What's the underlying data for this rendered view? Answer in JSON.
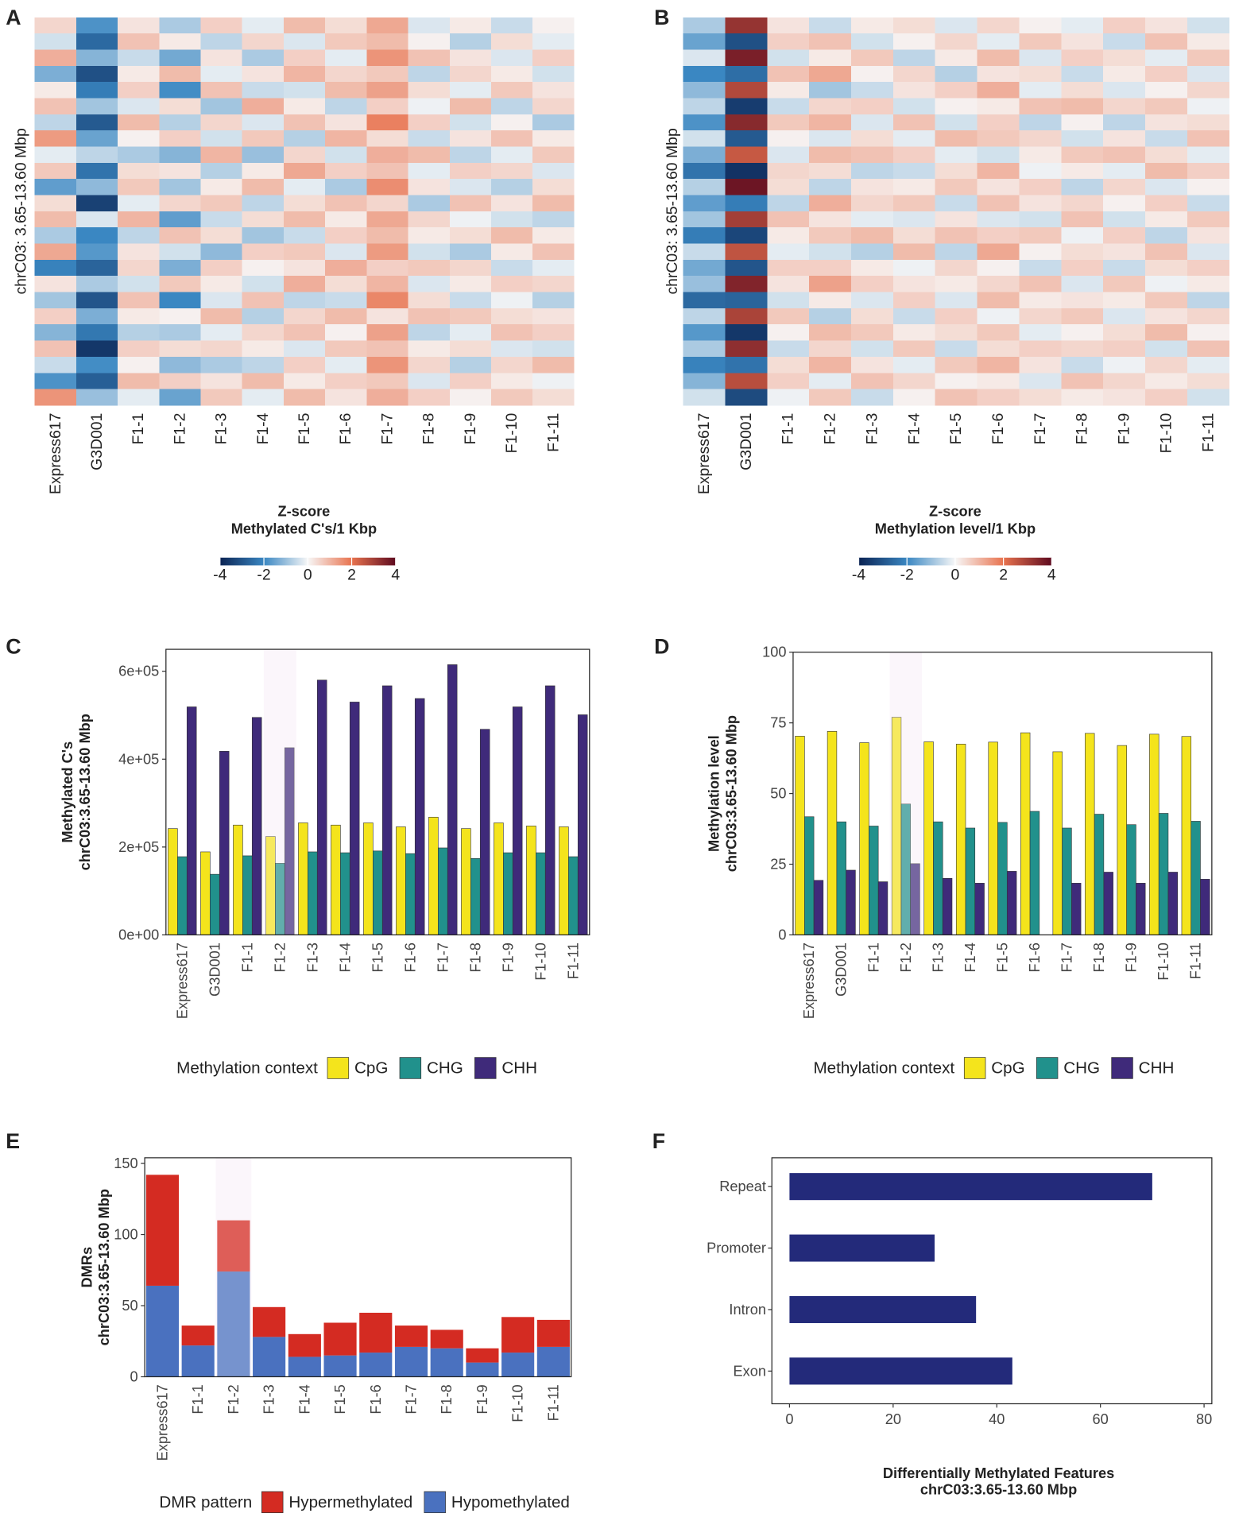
{
  "chart_data": [
    {
      "type": "heatmap",
      "panel": "A",
      "columns": [
        "Express617",
        "G3D001",
        "F1-1",
        "F1-2",
        "F1-3",
        "F1-4",
        "F1-5",
        "F1-6",
        "F1-7",
        "F1-8",
        "F1-9",
        "F1-10",
        "F1-11"
      ],
      "ylabel": "chrC03: 3.65-13.60 Mbp",
      "legend_title": [
        "Z-score",
        "Methylated C's/1 Kbp"
      ],
      "zlim": [
        -4,
        4
      ],
      "zticks": [
        -4,
        -2,
        0,
        2,
        4
      ],
      "colors": [
        "#0b2353",
        "#3a87c2",
        "#f7f7f7",
        "#e8734f",
        "#5e0a1f"
      ],
      "values": [
        [
          0.5,
          -1.8,
          0.3,
          -0.8,
          0.6,
          -0.2,
          0.9,
          0.4,
          1.2,
          -0.3,
          0.2,
          -0.5,
          0.1
        ],
        [
          -0.4,
          -2.6,
          0.8,
          0.2,
          -0.6,
          0.5,
          -0.3,
          0.7,
          0.9,
          0.1,
          -0.7,
          0.4,
          -0.2
        ],
        [
          1.1,
          -1.2,
          -0.5,
          -1.4,
          0.3,
          -0.8,
          0.6,
          -0.2,
          1.5,
          0.8,
          0.3,
          -0.3,
          0.6
        ],
        [
          -1.3,
          -3.1,
          0.2,
          0.9,
          -0.2,
          0.3,
          1.0,
          0.5,
          0.7,
          -0.6,
          0.5,
          0.2,
          -0.4
        ],
        [
          0.2,
          -2.2,
          0.6,
          -1.9,
          0.8,
          -0.5,
          -0.4,
          0.9,
          1.3,
          0.4,
          -0.2,
          0.7,
          0.3
        ],
        [
          0.8,
          -0.9,
          -0.3,
          0.4,
          -0.9,
          1.1,
          0.2,
          -0.6,
          0.6,
          -0.1,
          0.9,
          -0.6,
          0.5
        ],
        [
          -0.6,
          -2.9,
          0.9,
          -0.7,
          0.5,
          -0.3,
          0.8,
          0.3,
          1.8,
          0.6,
          -0.4,
          0.1,
          -0.8
        ],
        [
          1.4,
          -1.5,
          0.1,
          0.6,
          -0.4,
          0.7,
          -0.7,
          1.0,
          0.4,
          -0.5,
          0.3,
          0.8,
          0.2
        ],
        [
          -0.2,
          -0.6,
          -0.8,
          -1.2,
          1.0,
          -1.0,
          0.5,
          -0.4,
          1.1,
          0.9,
          -0.6,
          -0.2,
          0.7
        ],
        [
          0.7,
          -2.4,
          0.4,
          0.3,
          -0.7,
          0.2,
          1.2,
          0.6,
          0.8,
          -0.2,
          0.6,
          0.5,
          -0.3
        ],
        [
          -1.6,
          -1.1,
          0.7,
          -0.9,
          0.2,
          0.9,
          -0.2,
          -0.8,
          1.6,
          0.3,
          -0.3,
          -0.7,
          0.4
        ],
        [
          0.4,
          -3.4,
          -0.2,
          0.5,
          0.7,
          -0.6,
          0.4,
          0.8,
          0.5,
          -0.8,
          0.8,
          0.3,
          0.9
        ],
        [
          0.9,
          -0.3,
          1.0,
          -1.6,
          -0.5,
          0.4,
          0.9,
          0.2,
          1.2,
          0.5,
          -0.1,
          -0.4,
          -0.6
        ],
        [
          -0.8,
          -2.0,
          -0.6,
          0.8,
          0.4,
          -0.9,
          -0.5,
          0.6,
          0.9,
          0.2,
          0.4,
          0.9,
          0.2
        ],
        [
          1.2,
          -1.7,
          0.3,
          -0.4,
          -1.1,
          0.6,
          0.7,
          -0.3,
          1.4,
          -0.4,
          -0.8,
          0.2,
          0.8
        ],
        [
          -2.1,
          -2.7,
          0.5,
          -1.3,
          0.6,
          0.1,
          0.3,
          1.1,
          0.6,
          0.7,
          0.5,
          -0.5,
          -0.2
        ],
        [
          0.3,
          -0.8,
          -0.4,
          0.7,
          0.2,
          -0.4,
          1.1,
          0.4,
          1.0,
          -0.3,
          0.2,
          0.6,
          0.5
        ],
        [
          -0.9,
          -3.0,
          0.8,
          -2.0,
          -0.3,
          0.8,
          -0.6,
          -0.5,
          1.7,
          0.4,
          -0.5,
          -0.1,
          -0.7
        ],
        [
          0.6,
          -1.3,
          0.2,
          0.1,
          0.9,
          -0.7,
          0.5,
          0.9,
          0.3,
          0.8,
          0.7,
          0.4,
          0.3
        ],
        [
          -1.2,
          -2.3,
          -0.7,
          -0.8,
          -0.2,
          0.5,
          0.8,
          0.1,
          1.3,
          -0.6,
          -0.2,
          0.8,
          0.6
        ],
        [
          0.8,
          -3.6,
          0.6,
          0.4,
          0.5,
          0.2,
          -0.3,
          0.7,
          0.8,
          0.2,
          0.4,
          -0.3,
          -0.4
        ],
        [
          -0.5,
          -1.9,
          0.1,
          -1.1,
          -0.8,
          -0.6,
          0.6,
          -0.2,
          1.5,
          0.5,
          -0.7,
          0.5,
          0.9
        ],
        [
          -1.8,
          -2.8,
          0.9,
          0.6,
          0.3,
          0.9,
          0.2,
          0.6,
          0.7,
          -0.3,
          0.6,
          0.2,
          -0.1
        ],
        [
          1.5,
          -1.0,
          -0.2,
          -1.5,
          0.7,
          -0.2,
          0.9,
          0.3,
          1.1,
          0.6,
          0.1,
          0.7,
          0.4
        ]
      ]
    },
    {
      "type": "heatmap",
      "panel": "B",
      "columns": [
        "Express617",
        "G3D001",
        "F1-1",
        "F1-2",
        "F1-3",
        "F1-4",
        "F1-5",
        "F1-6",
        "F1-7",
        "F1-8",
        "F1-9",
        "F1-10",
        "F1-11"
      ],
      "ylabel": "chrC03: 3.65-13.60 Mbp",
      "legend_title": [
        "Z-score",
        "Methylation level/1 Kbp"
      ],
      "zlim": [
        -4,
        4
      ],
      "zticks": [
        -4,
        -2,
        0,
        2,
        4
      ],
      "colors": [
        "#0b2353",
        "#3a87c2",
        "#f7f7f7",
        "#e8734f",
        "#5e0a1f"
      ],
      "values": [
        [
          -0.8,
          3.2,
          0.3,
          -0.5,
          0.2,
          0.4,
          -0.3,
          0.5,
          0.1,
          -0.2,
          0.6,
          0.3,
          -0.4
        ],
        [
          -1.5,
          -3.1,
          0.6,
          0.8,
          -0.4,
          0.1,
          0.5,
          -0.2,
          0.7,
          0.3,
          -0.5,
          0.8,
          0.2
        ],
        [
          -0.3,
          3.6,
          -0.4,
          0.2,
          0.7,
          -0.6,
          0.2,
          0.9,
          -0.3,
          0.6,
          0.4,
          -0.2,
          0.7
        ],
        [
          -2.0,
          -2.5,
          0.8,
          1.2,
          0.1,
          0.5,
          -0.7,
          0.3,
          0.4,
          -0.5,
          0.2,
          0.6,
          -0.3
        ],
        [
          -1.1,
          2.8,
          0.2,
          -0.9,
          -0.5,
          0.3,
          0.6,
          1.1,
          -0.2,
          0.4,
          -0.3,
          0.1,
          0.5
        ],
        [
          -0.6,
          -3.5,
          -0.5,
          0.5,
          0.6,
          -0.4,
          0.1,
          0.2,
          0.8,
          0.9,
          0.5,
          0.7,
          -0.1
        ],
        [
          -1.8,
          3.4,
          0.7,
          1.0,
          -0.3,
          0.8,
          -0.4,
          0.6,
          -0.6,
          0.1,
          -0.6,
          0.3,
          0.4
        ],
        [
          -0.4,
          -2.9,
          0.1,
          -0.3,
          0.4,
          -0.2,
          0.9,
          0.7,
          0.5,
          -0.4,
          0.3,
          -0.5,
          0.8
        ],
        [
          -1.3,
          2.5,
          -0.3,
          0.9,
          0.8,
          0.6,
          -0.2,
          -0.4,
          0.2,
          0.7,
          0.8,
          0.4,
          -0.2
        ],
        [
          -2.4,
          -3.7,
          0.5,
          0.4,
          -0.6,
          -0.5,
          0.4,
          1.0,
          -0.1,
          0.2,
          -0.2,
          0.9,
          0.6
        ],
        [
          -0.7,
          3.8,
          0.4,
          -0.6,
          0.3,
          0.2,
          0.7,
          0.3,
          0.6,
          -0.6,
          0.5,
          -0.3,
          0.1
        ],
        [
          -1.6,
          -2.2,
          -0.6,
          1.1,
          0.5,
          0.7,
          -0.5,
          0.8,
          0.3,
          0.5,
          0.1,
          0.6,
          -0.5
        ],
        [
          -0.9,
          3.0,
          0.8,
          0.3,
          -0.2,
          -0.3,
          0.3,
          -0.3,
          -0.4,
          0.8,
          -0.4,
          0.2,
          0.7
        ],
        [
          -2.2,
          -3.3,
          0.2,
          0.7,
          0.9,
          0.4,
          0.8,
          0.6,
          0.7,
          -0.1,
          0.6,
          -0.6,
          0.3
        ],
        [
          -0.5,
          2.6,
          -0.2,
          -0.4,
          -0.7,
          0.9,
          -0.6,
          1.2,
          0.1,
          0.4,
          0.3,
          0.8,
          -0.3
        ],
        [
          -1.4,
          -3.0,
          0.6,
          0.6,
          0.2,
          -0.1,
          0.5,
          0.1,
          -0.5,
          0.6,
          -0.5,
          0.4,
          0.6
        ],
        [
          -1.0,
          3.5,
          0.3,
          1.3,
          0.6,
          0.3,
          0.2,
          0.5,
          0.8,
          -0.3,
          0.7,
          -0.1,
          0.2
        ],
        [
          -2.6,
          -2.7,
          -0.4,
          0.2,
          -0.3,
          0.6,
          -0.3,
          0.9,
          0.2,
          0.3,
          0.2,
          0.7,
          -0.6
        ],
        [
          -0.6,
          2.9,
          0.7,
          -0.7,
          0.4,
          -0.5,
          0.6,
          -0.1,
          0.5,
          0.7,
          -0.3,
          0.3,
          0.5
        ],
        [
          -1.7,
          -3.6,
          0.1,
          0.9,
          0.7,
          0.2,
          0.4,
          0.7,
          -0.2,
          0.1,
          0.4,
          0.9,
          0.1
        ],
        [
          -0.8,
          3.3,
          -0.5,
          0.5,
          -0.4,
          0.7,
          -0.5,
          0.4,
          0.6,
          0.5,
          0.6,
          -0.4,
          0.8
        ],
        [
          -2.1,
          -2.4,
          0.4,
          1.0,
          0.3,
          -0.2,
          0.7,
          1.0,
          0.3,
          -0.5,
          -0.1,
          0.5,
          -0.2
        ],
        [
          -1.2,
          2.7,
          0.6,
          -0.2,
          0.8,
          0.5,
          0.1,
          0.2,
          -0.3,
          0.8,
          0.5,
          0.2,
          0.4
        ],
        [
          -0.4,
          -3.2,
          -0.1,
          0.7,
          -0.5,
          0.1,
          0.8,
          0.6,
          0.4,
          0.2,
          0.3,
          0.6,
          -0.4
        ]
      ]
    },
    {
      "type": "bar",
      "panel": "C",
      "categories": [
        "Express617",
        "G3D001",
        "F1-1",
        "F1-2",
        "F1-3",
        "F1-4",
        "F1-5",
        "F1-6",
        "F1-7",
        "F1-8",
        "F1-9",
        "F1-10",
        "F1-11"
      ],
      "ylabel": [
        "Methylated C's",
        "chrC03:3.65-13.60 Mbp"
      ],
      "ylim": [
        0,
        650000
      ],
      "yticks": [
        {
          "value": 0,
          "label": "0e+00"
        },
        {
          "value": 200000,
          "label": "2e+05"
        },
        {
          "value": 400000,
          "label": "4e+05"
        },
        {
          "value": 600000,
          "label": "6e+05"
        }
      ],
      "highlight": 3,
      "legend_title": "Methylation context",
      "series": [
        {
          "name": "CpG",
          "color": "#f4e41c",
          "values": [
            242000,
            189000,
            250000,
            224000,
            255000,
            250000,
            255000,
            246000,
            268000,
            242000,
            255000,
            248000,
            246000
          ]
        },
        {
          "name": "CHG",
          "color": "#21918c",
          "values": [
            178000,
            138000,
            180000,
            163000,
            189000,
            187000,
            191000,
            185000,
            198000,
            174000,
            187000,
            187000,
            178000
          ]
        },
        {
          "name": "CHH",
          "color": "#3f2a7a",
          "values": [
            519000,
            418000,
            495000,
            426000,
            580000,
            530000,
            567000,
            538000,
            615000,
            468000,
            519000,
            567000,
            501000
          ]
        }
      ]
    },
    {
      "type": "bar",
      "panel": "D",
      "categories": [
        "Express617",
        "G3D001",
        "F1-1",
        "F1-2",
        "F1-3",
        "F1-4",
        "F1-5",
        "F1-6",
        "F1-7",
        "F1-8",
        "F1-9",
        "F1-10",
        "F1-11"
      ],
      "ylabel": [
        "Methylation level",
        "chrC03:3.65-13.60 Mbp"
      ],
      "ylim": [
        0,
        100
      ],
      "yticks": [
        0,
        25,
        50,
        75,
        100
      ],
      "highlight": 3,
      "legend_title": "Methylation context",
      "series": [
        {
          "name": "CpG",
          "color": "#f4e41c",
          "values": [
            70.3,
            72,
            68,
            77,
            68.3,
            67.5,
            68.2,
            71.5,
            64.8,
            71.3,
            67,
            71,
            70.2
          ]
        },
        {
          "name": "CHG",
          "color": "#21918c",
          "values": [
            41.8,
            40,
            38.5,
            46.3,
            40,
            37.8,
            39.8,
            43.7,
            37.8,
            42.7,
            39,
            43,
            40.2
          ]
        },
        {
          "name": "CHH",
          "color": "#3f2a7a",
          "values": [
            19.3,
            22.9,
            18.8,
            25.2,
            20,
            18.3,
            22.5,
            null,
            18.3,
            22.2,
            18.3,
            22.2,
            19.7
          ]
        }
      ]
    },
    {
      "type": "stacked",
      "panel": "E",
      "categories": [
        "Express617",
        "F1-1",
        "F1-2",
        "F1-3",
        "F1-4",
        "F1-5",
        "F1-6",
        "F1-7",
        "F1-8",
        "F1-9",
        "F1-10",
        "F1-11"
      ],
      "ylabel": [
        "DMRs",
        "chrC03:3.65-13.60 Mbp"
      ],
      "ylim": [
        0,
        154
      ],
      "yticks": [
        0,
        50,
        100,
        150
      ],
      "highlight": 2,
      "legend_title": "DMR pattern",
      "series": [
        {
          "name": "Hypermethylated",
          "color": "#d42b22",
          "values": [
            78,
            14,
            36,
            21,
            16,
            23,
            28,
            15,
            13,
            10,
            25,
            19
          ]
        },
        {
          "name": "Hypomethylated",
          "color": "#4a71bf",
          "values": [
            64,
            22,
            74,
            28,
            14,
            15,
            17,
            21,
            20,
            10,
            17,
            21
          ]
        }
      ]
    },
    {
      "type": "barh",
      "panel": "F",
      "categories": [
        "Repeat",
        "Promoter",
        "Intron",
        "Exon"
      ],
      "values": [
        70,
        28,
        36,
        43
      ],
      "color": "#232a7a",
      "xlim": [
        -3.4,
        81.5
      ],
      "xticks": [
        0,
        20,
        40,
        60,
        80
      ],
      "xlabel": [
        "Differentially Methylated Features",
        "chrC03:3.65-13.60 Mbp"
      ]
    }
  ]
}
